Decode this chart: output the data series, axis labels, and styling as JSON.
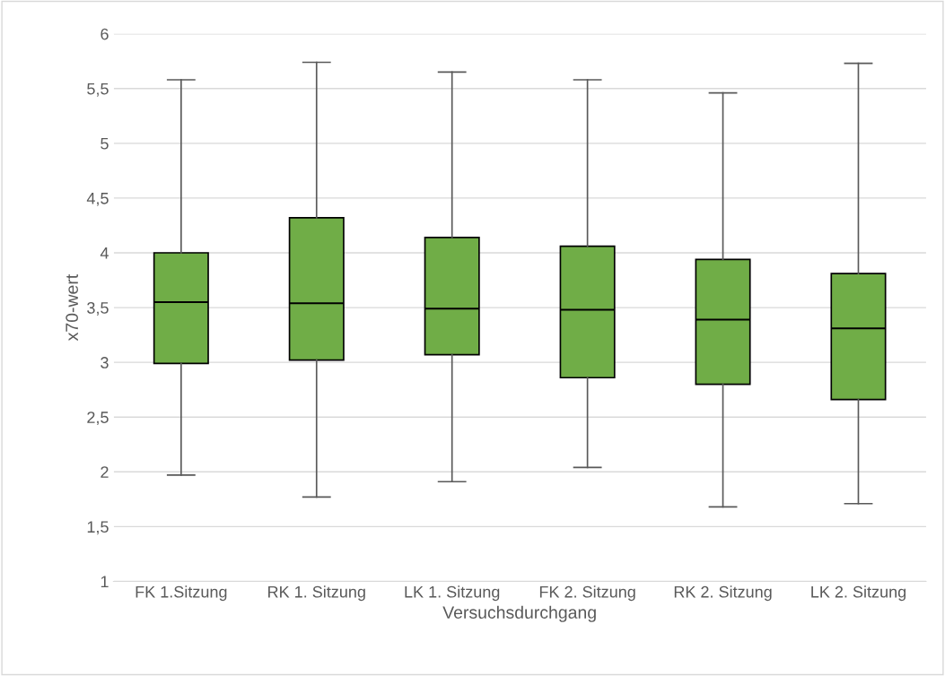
{
  "chart_data": {
    "type": "box",
    "xlabel": "Versuchsdurchgang",
    "ylabel": "x70-wert",
    "categories": [
      "FK 1.Sitzung",
      "RK 1. Sitzung",
      "LK 1. Sitzung",
      "FK 2. Sitzung",
      "RK 2. Sitzung",
      "LK 2. Sitzung"
    ],
    "series": [
      {
        "color": "#70ad47",
        "boxes": [
          {
            "low": 1.97,
            "q1": 2.99,
            "median": 3.55,
            "q3": 4.0,
            "high": 5.58
          },
          {
            "low": 1.77,
            "q1": 3.02,
            "median": 3.54,
            "q3": 4.32,
            "high": 5.74
          },
          {
            "low": 1.91,
            "q1": 3.07,
            "median": 3.49,
            "q3": 4.14,
            "high": 5.65
          },
          {
            "low": 2.04,
            "q1": 2.86,
            "median": 3.48,
            "q3": 4.06,
            "high": 5.58
          },
          {
            "low": 1.68,
            "q1": 2.8,
            "median": 3.39,
            "q3": 3.94,
            "high": 5.46
          },
          {
            "low": 1.71,
            "q1": 2.66,
            "median": 3.31,
            "q3": 3.81,
            "high": 5.73
          }
        ]
      }
    ],
    "ylim": [
      1,
      6
    ],
    "yticks": [
      1,
      {
        "value": 1.5,
        "label": "1,5"
      },
      2,
      {
        "value": 2.5,
        "label": "2,5"
      },
      3,
      {
        "value": 3.5,
        "label": "3,5"
      },
      4,
      {
        "value": 4.5,
        "label": "4,5"
      },
      5,
      {
        "value": 5.5,
        "label": "5,5"
      },
      6
    ],
    "grid": "y"
  }
}
